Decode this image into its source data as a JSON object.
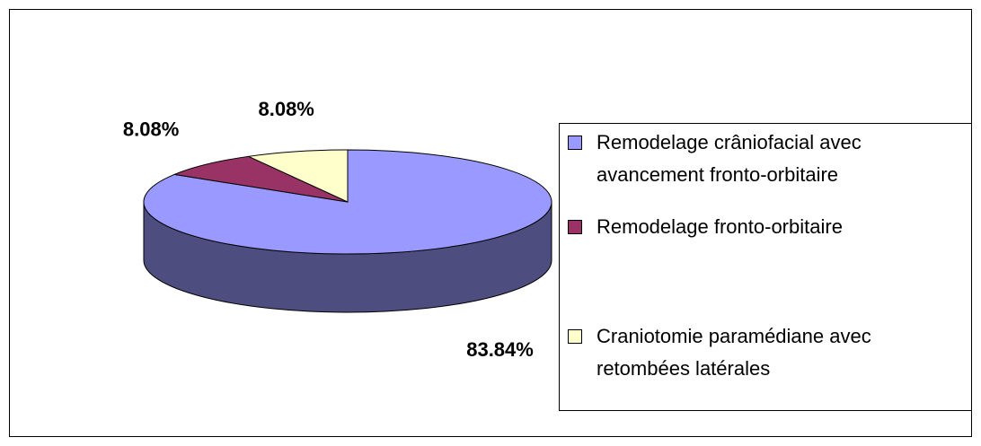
{
  "chart_data": {
    "type": "pie",
    "three_d": true,
    "categories": [
      "Remodelage crâniofacial avec avancement fronto-orbitaire",
      "Remodelage fronto-orbitaire",
      "Craniotomie paramédiane avec retombées latérales"
    ],
    "values": [
      83.84,
      8.08,
      8.08
    ],
    "value_labels": [
      "83.84%",
      "8.08%",
      "8.08%"
    ],
    "colors": [
      "#9999ff",
      "#993366",
      "#ffffcc"
    ],
    "legend": "right"
  }
}
